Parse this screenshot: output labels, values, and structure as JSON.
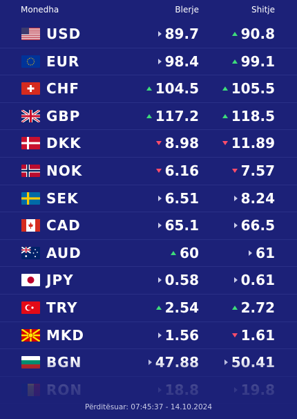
{
  "header": {
    "currency": "Monedha",
    "buy": "Blerje",
    "sell": "Shitje"
  },
  "rates": [
    {
      "code": "USD",
      "flag": "us-flag-icon",
      "buy": "89.7",
      "buy_dir": "flat",
      "sell": "90.8",
      "sell_dir": "up"
    },
    {
      "code": "EUR",
      "flag": "eu-flag-icon",
      "buy": "98.4",
      "buy_dir": "flat",
      "sell": "99.1",
      "sell_dir": "up"
    },
    {
      "code": "CHF",
      "flag": "ch-flag-icon",
      "buy": "104.5",
      "buy_dir": "up",
      "sell": "105.5",
      "sell_dir": "up"
    },
    {
      "code": "GBP",
      "flag": "gb-flag-icon",
      "buy": "117.2",
      "buy_dir": "up",
      "sell": "118.5",
      "sell_dir": "up"
    },
    {
      "code": "DKK",
      "flag": "dk-flag-icon",
      "buy": "8.98",
      "buy_dir": "down",
      "sell": "11.89",
      "sell_dir": "down"
    },
    {
      "code": "NOK",
      "flag": "no-flag-icon",
      "buy": "6.16",
      "buy_dir": "down",
      "sell": "7.57",
      "sell_dir": "down"
    },
    {
      "code": "SEK",
      "flag": "se-flag-icon",
      "buy": "6.51",
      "buy_dir": "flat",
      "sell": "8.24",
      "sell_dir": "flat"
    },
    {
      "code": "CAD",
      "flag": "ca-flag-icon",
      "buy": "65.1",
      "buy_dir": "flat",
      "sell": "66.5",
      "sell_dir": "flat"
    },
    {
      "code": "AUD",
      "flag": "au-flag-icon",
      "buy": "60",
      "buy_dir": "up",
      "sell": "61",
      "sell_dir": "flat"
    },
    {
      "code": "JPY",
      "flag": "jp-flag-icon",
      "buy": "0.58",
      "buy_dir": "flat",
      "sell": "0.61",
      "sell_dir": "flat"
    },
    {
      "code": "TRY",
      "flag": "tr-flag-icon",
      "buy": "2.54",
      "buy_dir": "up",
      "sell": "2.72",
      "sell_dir": "up"
    },
    {
      "code": "MKD",
      "flag": "mk-flag-icon",
      "buy": "1.56",
      "buy_dir": "flat",
      "sell": "1.61",
      "sell_dir": "down"
    },
    {
      "code": "BGN",
      "flag": "bg-flag-icon",
      "buy": "47.88",
      "buy_dir": "flat",
      "sell": "50.41",
      "sell_dir": "flat"
    },
    {
      "code": "RON",
      "flag": "ro-flag-icon",
      "buy": "18.8",
      "buy_dir": "flat",
      "sell": "19.8",
      "sell_dir": "flat"
    }
  ],
  "footer": {
    "updated": "Përditësuar: 07:45:37 - 14.10.2024"
  },
  "colors": {
    "background": "#1c2178",
    "up": "#3ddc7a",
    "down": "#ff4d6a",
    "flat": "#c8cbe8"
  }
}
